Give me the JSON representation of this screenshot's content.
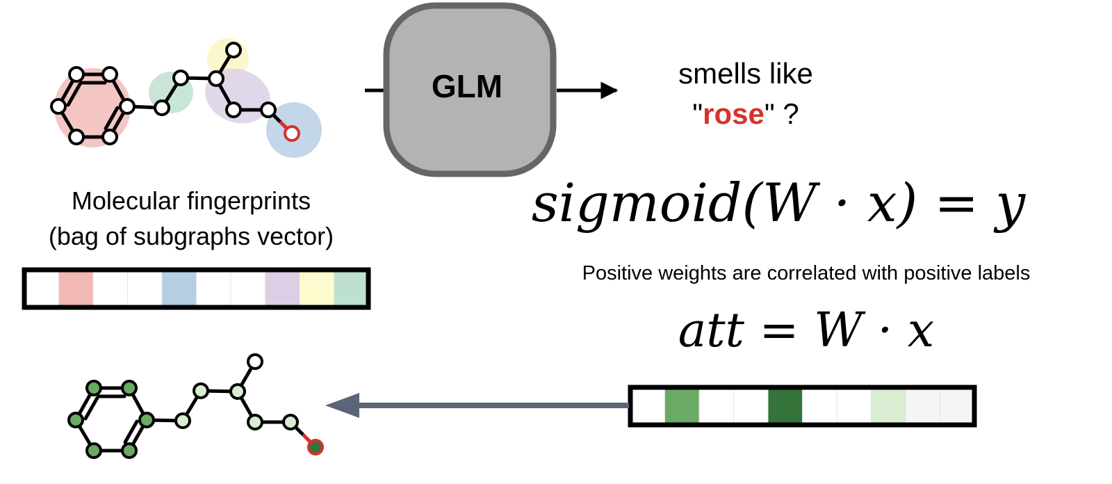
{
  "glm": {
    "label": "GLM"
  },
  "output": {
    "line1": "smells like",
    "quote_open": "\"",
    "word": "rose",
    "quote_close": "\" ?"
  },
  "fingerprint_caption": {
    "line1": "Molecular fingerprints",
    "line2": "(bag of subgraphs vector)"
  },
  "equations": {
    "model": "sigmoid(W · x) = y",
    "attribution": "att = W · x"
  },
  "note": "Positive weights are correlated with positive labels",
  "colors": {
    "atom_red": "#d5332a",
    "highlight_red": "#f2bcb8",
    "highlight_green": "#bfe0cf",
    "highlight_purple": "#dcd0e6",
    "highlight_yellow": "#fbf7c9",
    "highlight_blue": "#b8cfe6",
    "glm_fill": "#b3b3b3",
    "glm_stroke": "#666666",
    "arrow_back": "#5a6578"
  },
  "fingerprint_vector": [
    "#ffffff",
    "#f2b8b3",
    "#ffffff",
    "#ffffff",
    "#b6cee3",
    "#ffffff",
    "#ffffff",
    "#dccfe5",
    "#fdfbcd",
    "#bde0cf"
  ],
  "attribution_vector": [
    "#ffffff",
    "#6aaa64",
    "#ffffff",
    "#ffffff",
    "#34733a",
    "#ffffff",
    "#ffffff",
    "#d8edd2",
    "#f5f5f5",
    "#f5f5f5"
  ]
}
